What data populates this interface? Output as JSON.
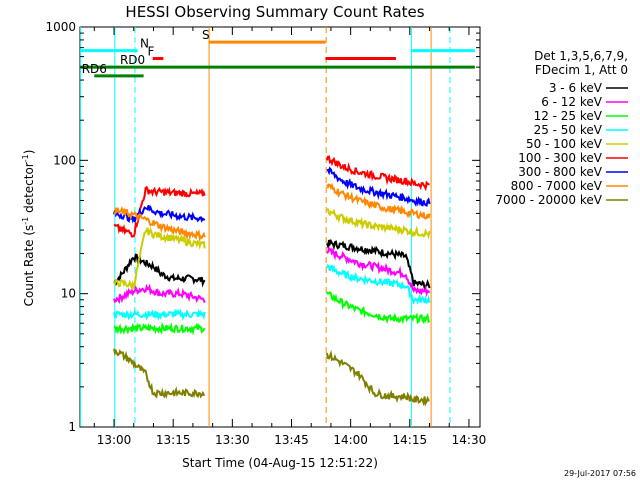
{
  "chart_data": {
    "type": "line",
    "title": "HESSI Observing Summary Count Rates",
    "xlabel": "Start Time (04-Aug-15 12:51:22)",
    "ylabel_main": "Count Rate (s",
    "ylabel_sup1": "-1",
    "ylabel_mid": " detector",
    "ylabel_sup2": "-1",
    "ylabel_end": ")",
    "yscale": "log",
    "ylim": [
      1,
      1000
    ],
    "y_ticks": [
      "1",
      "10",
      "100",
      "1000"
    ],
    "x_ticks": [
      "13:00",
      "13:15",
      "13:30",
      "13:45",
      "14:00",
      "14:15",
      "14:30"
    ],
    "x_tick_minutes": [
      60,
      75,
      90,
      105,
      120,
      135,
      150
    ],
    "xlim_minutes": [
      51.37,
      152.8
    ],
    "legend_header": [
      "Det 1,3,5,6,7,9,",
      "FDecim 1, Att 0"
    ],
    "legend_position": "right",
    "timestamp": "29-Jul-2017 07:56",
    "series": [
      {
        "name": "3 - 6 keV",
        "color": "#000000",
        "seg1": [
          [
            60,
            12
          ],
          [
            62,
            14
          ],
          [
            65,
            19
          ],
          [
            68,
            17
          ],
          [
            70,
            16
          ],
          [
            72,
            14
          ],
          [
            75,
            13
          ],
          [
            77,
            13
          ],
          [
            80,
            13
          ],
          [
            83,
            12.5
          ]
        ],
        "seg2": [
          [
            114,
            24
          ],
          [
            118,
            23
          ],
          [
            122,
            22
          ],
          [
            126,
            21
          ],
          [
            130,
            20
          ],
          [
            134,
            19
          ],
          [
            136,
            12
          ],
          [
            140,
            11.5
          ]
        ]
      },
      {
        "name": "6 - 12 keV",
        "color": "#ff00ff",
        "seg1": [
          [
            60,
            9
          ],
          [
            62,
            9.5
          ],
          [
            65,
            10.5
          ],
          [
            68,
            11
          ],
          [
            70,
            10.5
          ],
          [
            72,
            10
          ],
          [
            75,
            10
          ],
          [
            77,
            10
          ],
          [
            80,
            9.5
          ],
          [
            83,
            9
          ]
        ],
        "seg2": [
          [
            114,
            21
          ],
          [
            118,
            19
          ],
          [
            122,
            17
          ],
          [
            126,
            16
          ],
          [
            130,
            15
          ],
          [
            134,
            14
          ],
          [
            136,
            10.5
          ],
          [
            140,
            10.5
          ]
        ]
      },
      {
        "name": "12 - 25 keV",
        "color": "#00ff00",
        "seg1": [
          [
            60,
            5.5
          ],
          [
            65,
            5.5
          ],
          [
            70,
            5.5
          ],
          [
            75,
            5.5
          ],
          [
            80,
            5.5
          ],
          [
            83,
            5.5
          ]
        ],
        "seg2": [
          [
            114,
            10
          ],
          [
            118,
            8.5
          ],
          [
            122,
            7.5
          ],
          [
            126,
            7
          ],
          [
            130,
            6.5
          ],
          [
            134,
            6.5
          ],
          [
            136,
            6.5
          ],
          [
            140,
            6.5
          ]
        ]
      },
      {
        "name": "25 - 50 keV",
        "color": "#00ffff",
        "seg1": [
          [
            60,
            7
          ],
          [
            62,
            7
          ],
          [
            65,
            7
          ],
          [
            68,
            7
          ],
          [
            70,
            7
          ],
          [
            72,
            7
          ],
          [
            75,
            7
          ],
          [
            77,
            7
          ],
          [
            80,
            7
          ],
          [
            83,
            7
          ]
        ],
        "seg2": [
          [
            114,
            16
          ],
          [
            118,
            14
          ],
          [
            122,
            13
          ],
          [
            126,
            12.5
          ],
          [
            130,
            12
          ],
          [
            134,
            11.5
          ],
          [
            136,
            9
          ],
          [
            140,
            9
          ]
        ]
      },
      {
        "name": "50 - 100 keV",
        "color": "#cccc00",
        "seg1": [
          [
            60,
            12
          ],
          [
            62,
            12
          ],
          [
            65,
            11.5
          ],
          [
            68,
            30
          ],
          [
            70,
            28
          ],
          [
            72,
            27
          ],
          [
            75,
            26
          ],
          [
            77,
            25
          ],
          [
            80,
            24
          ],
          [
            83,
            23
          ]
        ],
        "seg2": [
          [
            114,
            42
          ],
          [
            118,
            37
          ],
          [
            122,
            34
          ],
          [
            126,
            32
          ],
          [
            130,
            31
          ],
          [
            134,
            30
          ],
          [
            136,
            29
          ],
          [
            140,
            28
          ]
        ]
      },
      {
        "name": "100 - 300 keV",
        "color": "#ff0000",
        "seg1": [
          [
            60,
            32
          ],
          [
            62,
            30
          ],
          [
            65,
            28
          ],
          [
            68,
            60
          ],
          [
            70,
            58
          ],
          [
            72,
            58
          ],
          [
            75,
            57
          ],
          [
            77,
            57
          ],
          [
            80,
            56
          ],
          [
            83,
            56
          ]
        ],
        "seg2": [
          [
            114,
            105
          ],
          [
            118,
            90
          ],
          [
            122,
            82
          ],
          [
            126,
            77
          ],
          [
            130,
            73
          ],
          [
            134,
            70
          ],
          [
            136,
            67
          ],
          [
            140,
            65
          ]
        ]
      },
      {
        "name": "300 - 800 keV",
        "color": "#0000ff",
        "seg1": [
          [
            60,
            40
          ],
          [
            62,
            39
          ],
          [
            65,
            36
          ],
          [
            68,
            45
          ],
          [
            70,
            42
          ],
          [
            72,
            40
          ],
          [
            75,
            39
          ],
          [
            77,
            38
          ],
          [
            80,
            37
          ],
          [
            83,
            37
          ]
        ],
        "seg2": [
          [
            114,
            85
          ],
          [
            118,
            70
          ],
          [
            122,
            62
          ],
          [
            126,
            58
          ],
          [
            130,
            55
          ],
          [
            134,
            52
          ],
          [
            136,
            50
          ],
          [
            140,
            48
          ]
        ]
      },
      {
        "name": "800 - 7000 keV",
        "color": "#ff8800",
        "seg1": [
          [
            60,
            42
          ],
          [
            62,
            41
          ],
          [
            65,
            39
          ],
          [
            68,
            36
          ],
          [
            70,
            34
          ],
          [
            72,
            32
          ],
          [
            75,
            30
          ],
          [
            77,
            29
          ],
          [
            80,
            28
          ],
          [
            83,
            27
          ]
        ],
        "seg2": [
          [
            114,
            65
          ],
          [
            118,
            56
          ],
          [
            122,
            50
          ],
          [
            126,
            46
          ],
          [
            130,
            43
          ],
          [
            134,
            41
          ],
          [
            136,
            40
          ],
          [
            140,
            38
          ]
        ]
      },
      {
        "name": "7000 - 20000 keV",
        "color": "#808000",
        "seg1": [
          [
            60,
            3.8
          ],
          [
            62,
            3.5
          ],
          [
            65,
            3
          ],
          [
            68,
            2.5
          ],
          [
            70,
            1.8
          ],
          [
            72,
            1.8
          ],
          [
            75,
            1.8
          ],
          [
            77,
            1.8
          ],
          [
            80,
            1.8
          ],
          [
            83,
            1.8
          ]
        ],
        "seg2": [
          [
            114,
            3.5
          ],
          [
            118,
            3
          ],
          [
            122,
            2.5
          ],
          [
            126,
            1.8
          ],
          [
            130,
            1.7
          ],
          [
            134,
            1.7
          ],
          [
            136,
            1.6
          ],
          [
            140,
            1.6
          ]
        ]
      }
    ],
    "flags": [
      {
        "label": "N",
        "color": "#00ffff",
        "y": 665,
        "segments": [
          [
            51.4,
            66
          ],
          [
            135.5,
            151.5
          ]
        ],
        "label_at": 66.6
      },
      {
        "label": "F",
        "color": "#ff0000",
        "y": 580,
        "segments": [
          [
            69.8,
            72.5
          ],
          [
            113.6,
            131.5
          ]
        ],
        "label_at": 68.5
      },
      {
        "label": "S",
        "color": "#ff8800",
        "y": 770,
        "segments": [
          [
            84,
            113.6
          ]
        ],
        "label_at": 82.3
      },
      {
        "label": "RD0",
        "color": "#008000",
        "y": 500,
        "segments": [
          [
            51.4,
            151.5
          ]
        ],
        "label_at": 61.5
      },
      {
        "label": "RD6",
        "color": "#008000",
        "y": 430,
        "segments": [
          [
            55,
            67.5
          ]
        ],
        "label_at": 51.8
      }
    ],
    "vlines": [
      {
        "color": "#00ffff",
        "x": 51.5,
        "style": "solid"
      },
      {
        "color": "#00ffff",
        "x": 60.2,
        "style": "solid"
      },
      {
        "color": "#00ffff",
        "x": 65.3,
        "style": "dashed"
      },
      {
        "color": "#ff8800",
        "x": 84.1,
        "style": "solid"
      },
      {
        "color": "#ff8800",
        "x": 113.8,
        "style": "dashed"
      },
      {
        "color": "#00ffff",
        "x": 135.4,
        "style": "solid"
      },
      {
        "color": "#ff8800",
        "x": 140.4,
        "style": "solid"
      },
      {
        "color": "#00ffff",
        "x": 145.2,
        "style": "dashed"
      }
    ]
  }
}
